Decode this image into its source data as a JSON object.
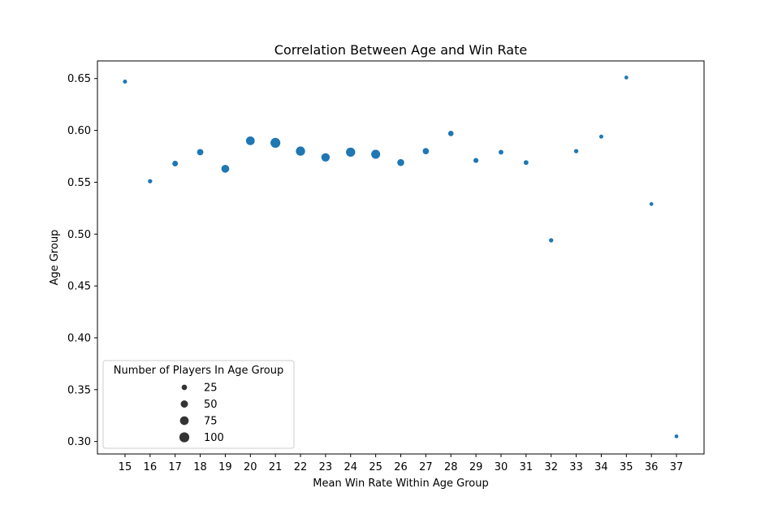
{
  "chart_data": {
    "type": "scatter",
    "title": "Correlation Between Age and Win Rate",
    "xlabel": "Mean Win Rate Within Age Group",
    "ylabel": "Age Group",
    "x_ticks": [
      "15",
      "16",
      "17",
      "18",
      "19",
      "20",
      "21",
      "22",
      "23",
      "24",
      "25",
      "26",
      "27",
      "28",
      "29",
      "30",
      "31",
      "32",
      "33",
      "34",
      "35",
      "36",
      "37"
    ],
    "y_ticks": [
      "0.30",
      "0.35",
      "0.40",
      "0.45",
      "0.50",
      "0.55",
      "0.60",
      "0.65"
    ],
    "xlim": [
      13.9,
      38.1
    ],
    "ylim": [
      0.288,
      0.667
    ],
    "grid": false,
    "color": "#1f77b4",
    "points": [
      {
        "x": 15,
        "y": 0.647,
        "size": 12
      },
      {
        "x": 16,
        "y": 0.551,
        "size": 14
      },
      {
        "x": 17,
        "y": 0.568,
        "size": 28
      },
      {
        "x": 18,
        "y": 0.579,
        "size": 36
      },
      {
        "x": 19,
        "y": 0.563,
        "size": 60
      },
      {
        "x": 20,
        "y": 0.59,
        "size": 75
      },
      {
        "x": 21,
        "y": 0.588,
        "size": 100
      },
      {
        "x": 22,
        "y": 0.58,
        "size": 85
      },
      {
        "x": 23,
        "y": 0.574,
        "size": 70
      },
      {
        "x": 24,
        "y": 0.579,
        "size": 85
      },
      {
        "x": 25,
        "y": 0.577,
        "size": 80
      },
      {
        "x": 26,
        "y": 0.569,
        "size": 45
      },
      {
        "x": 27,
        "y": 0.58,
        "size": 35
      },
      {
        "x": 28,
        "y": 0.597,
        "size": 25
      },
      {
        "x": 29,
        "y": 0.571,
        "size": 20
      },
      {
        "x": 30,
        "y": 0.579,
        "size": 18
      },
      {
        "x": 31,
        "y": 0.569,
        "size": 18
      },
      {
        "x": 32,
        "y": 0.494,
        "size": 14
      },
      {
        "x": 33,
        "y": 0.58,
        "size": 14
      },
      {
        "x": 34,
        "y": 0.594,
        "size": 12
      },
      {
        "x": 35,
        "y": 0.651,
        "size": 10
      },
      {
        "x": 36,
        "y": 0.529,
        "size": 10
      },
      {
        "x": 37,
        "y": 0.305,
        "size": 10
      }
    ],
    "legend": {
      "title": "Number of Players In Age Group",
      "placement": "lower-left",
      "entries": [
        {
          "label": "25",
          "size": 25
        },
        {
          "label": "50",
          "size": 50
        },
        {
          "label": "75",
          "size": 75
        },
        {
          "label": "100",
          "size": 100
        }
      ]
    }
  }
}
